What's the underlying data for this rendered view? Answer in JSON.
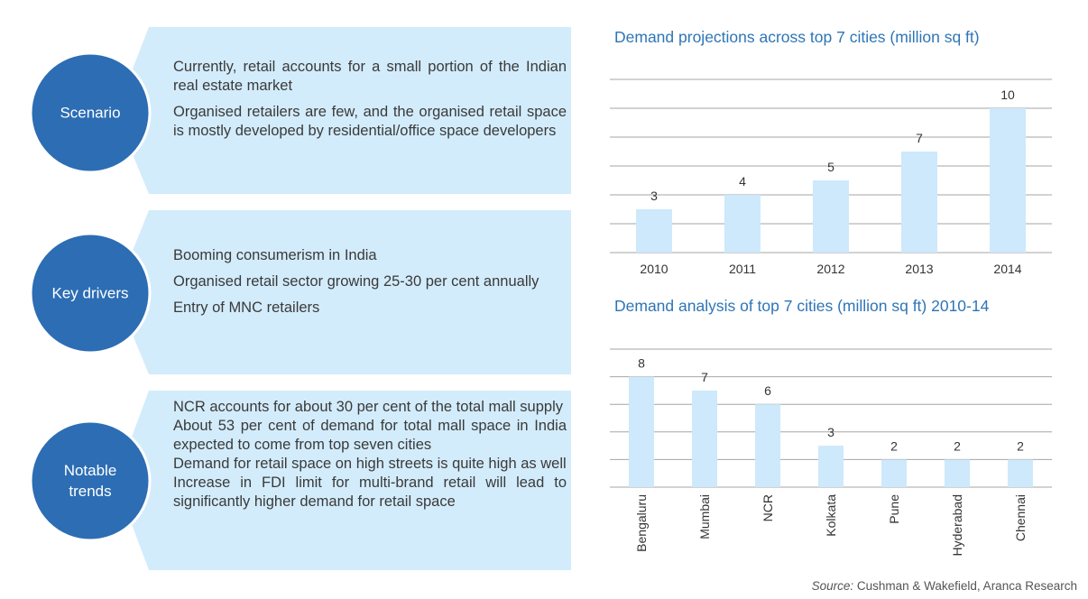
{
  "panels": [
    {
      "label": "Scenario",
      "points": [
        "Currently, retail accounts for a small portion of the Indian real estate market",
        "Organised retailers are few, and the organised retail space is mostly developed by residential/office space developers"
      ]
    },
    {
      "label": "Key drivers",
      "points": [
        "Booming consumerism in India",
        "Organised retail sector growing 25-30 per cent annually",
        "Entry of MNC retailers"
      ]
    },
    {
      "label": "Notable trends",
      "points": [
        "NCR accounts for about 30 per cent of the total mall supply",
        "About 53 per cent of demand for total mall space in India expected to come from top seven cities",
        "Demand for retail space on high streets is quite high as well",
        "Increase in FDI limit for multi-brand retail will lead to significantly higher demand for retail space"
      ]
    }
  ],
  "chart_data": [
    {
      "type": "bar",
      "title": "Demand projections across top 7 cities (million sq ft)",
      "categories": [
        "2010",
        "2011",
        "2012",
        "2013",
        "2014"
      ],
      "values": [
        3,
        4,
        5,
        7,
        10
      ],
      "color": "#cde9fb",
      "ylim": [
        0,
        12
      ],
      "yticks": [
        0,
        2,
        4,
        6,
        8,
        10,
        12
      ],
      "grid": true,
      "tick_labels": false,
      "rotate_categories": false
    },
    {
      "type": "bar",
      "title": "Demand analysis of top 7 cities (million sq ft) 2010-14",
      "categories": [
        "Bengaluru",
        "Mumbai",
        "NCR",
        "Kolkata",
        "Pune",
        "Hyderabad",
        "Chennai"
      ],
      "values": [
        8,
        7,
        6,
        3,
        2,
        2,
        2
      ],
      "color": "#cde9fb",
      "ylim": [
        0,
        10
      ],
      "yticks": [
        0,
        2,
        4,
        6,
        8,
        10
      ],
      "grid": true,
      "tick_labels": false,
      "rotate_categories": true
    }
  ],
  "source": {
    "label": "Source:",
    "text": "Cushman & Wakefield, Aranca Research"
  }
}
